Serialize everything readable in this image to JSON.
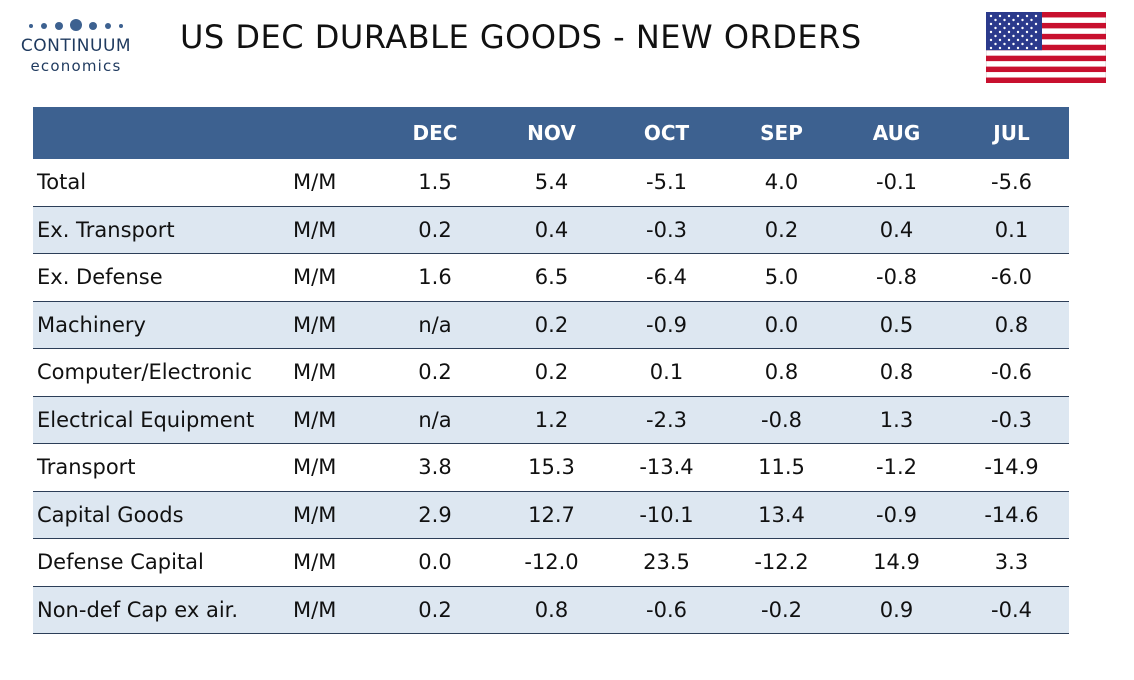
{
  "brand": {
    "name": "CONTINUUM",
    "sub": "economics",
    "color": "#1f3a5f"
  },
  "title": "US DEC DURABLE GOODS - NEW ORDERS",
  "flag_icon": "us-flag-icon",
  "colors": {
    "header_bg": "#3d6190",
    "row_alt_bg": "#dde7f1"
  },
  "table": {
    "columns": [
      "",
      "",
      "DEC",
      "NOV",
      "OCT",
      "SEP",
      "AUG",
      "JUL"
    ],
    "rows": [
      {
        "name": "Total",
        "unit": "M/M",
        "values": [
          "1.5",
          "5.4",
          "-5.1",
          "4.0",
          "-0.1",
          "-5.6"
        ]
      },
      {
        "name": "Ex. Transport",
        "unit": "M/M",
        "values": [
          "0.2",
          "0.4",
          "-0.3",
          "0.2",
          "0.4",
          "0.1"
        ]
      },
      {
        "name": "Ex. Defense",
        "unit": "M/M",
        "values": [
          "1.6",
          "6.5",
          "-6.4",
          "5.0",
          "-0.8",
          "-6.0"
        ]
      },
      {
        "name": "Machinery",
        "unit": "M/M",
        "values": [
          "n/a",
          "0.2",
          "-0.9",
          "0.0",
          "0.5",
          "0.8"
        ]
      },
      {
        "name": "Computer/Electronic",
        "unit": "M/M",
        "values": [
          "0.2",
          "0.2",
          "0.1",
          "0.8",
          "0.8",
          "-0.6"
        ]
      },
      {
        "name": "Electrical Equipment",
        "unit": "M/M",
        "values": [
          "n/a",
          "1.2",
          "-2.3",
          "-0.8",
          "1.3",
          "-0.3"
        ]
      },
      {
        "name": "Transport",
        "unit": "M/M",
        "values": [
          "3.8",
          "15.3",
          "-13.4",
          "11.5",
          "-1.2",
          "-14.9"
        ]
      },
      {
        "name": "Capital Goods",
        "unit": "M/M",
        "values": [
          "2.9",
          "12.7",
          "-10.1",
          "13.4",
          "-0.9",
          "-14.6"
        ]
      },
      {
        "name": "Defense Capital",
        "unit": "M/M",
        "values": [
          "0.0",
          "-12.0",
          "23.5",
          "-12.2",
          "14.9",
          "3.3"
        ]
      },
      {
        "name": "Non-def Cap ex air.",
        "unit": "M/M",
        "values": [
          "0.2",
          "0.8",
          "-0.6",
          "-0.2",
          "0.9",
          "-0.4"
        ]
      }
    ]
  }
}
